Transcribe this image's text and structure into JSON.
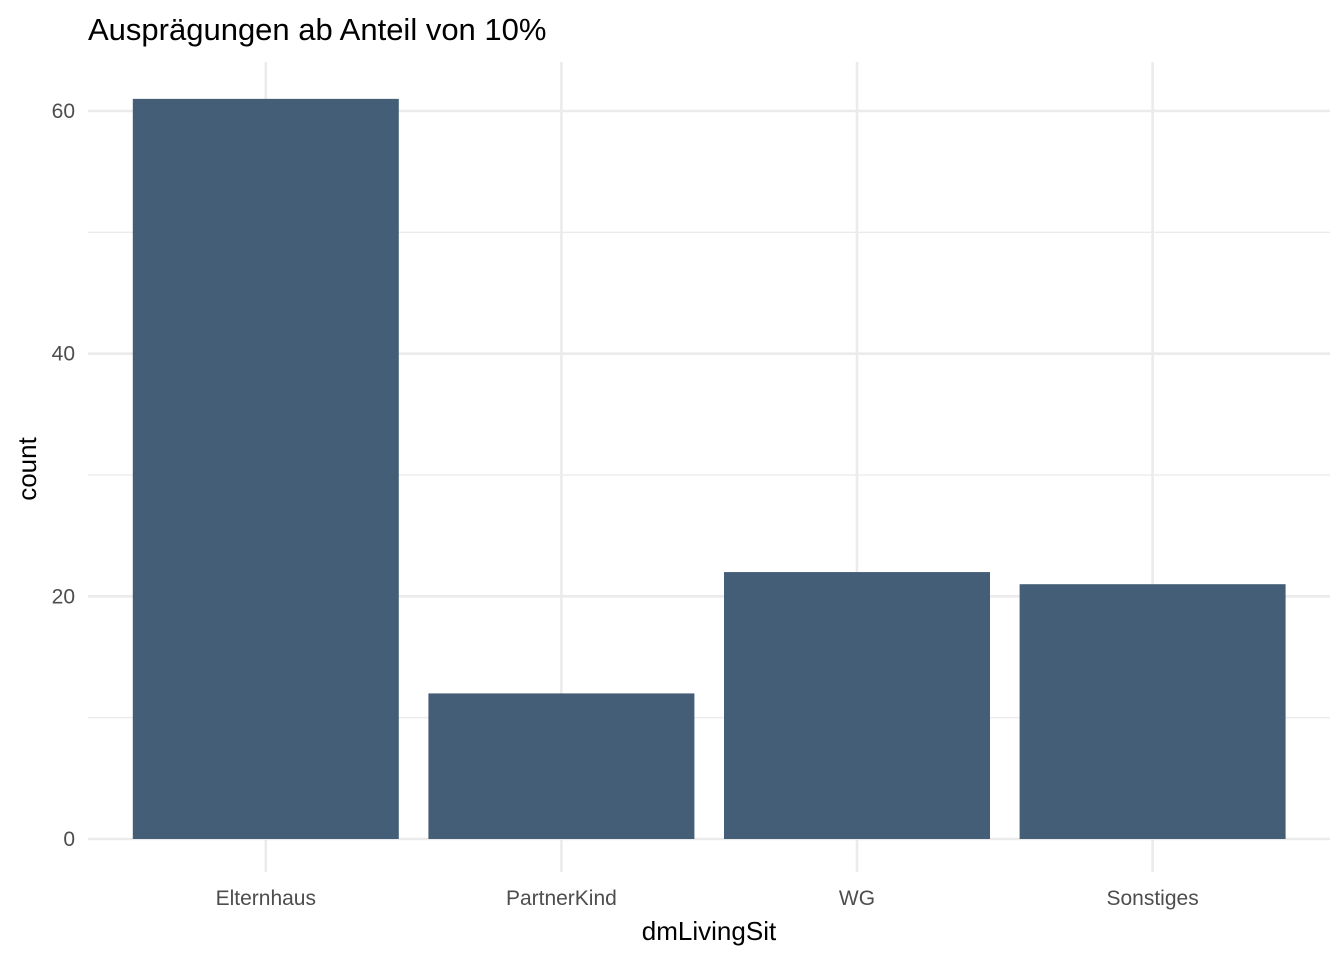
{
  "chart_data": {
    "type": "bar",
    "title": "Ausprägungen ab Anteil von 10%",
    "xlabel": "dmLivingSit",
    "ylabel": "count",
    "categories": [
      "Elternhaus",
      "PartnerKind",
      "WG",
      "Sonstiges"
    ],
    "values": [
      61,
      12,
      22,
      21
    ],
    "ylim": [
      0,
      64
    ],
    "yticks": [
      0,
      20,
      40,
      60
    ],
    "y_minor_ticks": [
      10,
      30,
      50
    ],
    "grid": true,
    "legend": "none",
    "bar_color": "#455E78",
    "grid_color": "#EBEBEB"
  }
}
